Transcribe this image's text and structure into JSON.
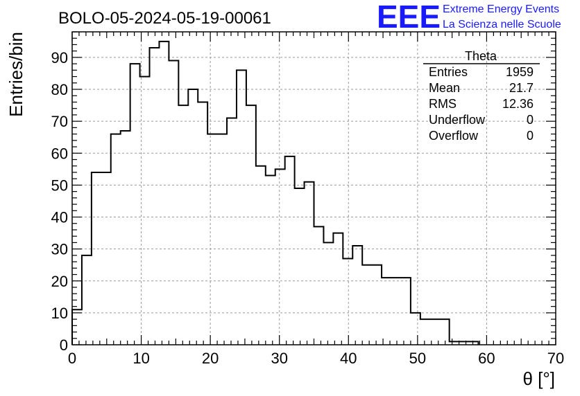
{
  "chart_data": {
    "type": "histogram",
    "title": "BOLO-05-2024-05-19-00061",
    "xlabel": "θ [°]",
    "ylabel": "Entries/bin",
    "xlim": [
      0,
      70
    ],
    "ylim": [
      0,
      98
    ],
    "grid": true,
    "xticks": [
      0,
      10,
      20,
      30,
      40,
      50,
      60,
      70
    ],
    "yticks": [
      0,
      10,
      20,
      30,
      40,
      50,
      60,
      70,
      80,
      90
    ],
    "bin_edges": [
      0.0,
      1.4,
      2.8,
      4.2,
      5.6,
      7.0,
      8.4,
      9.8,
      11.2,
      12.6,
      14.0,
      15.4,
      16.8,
      18.2,
      19.6,
      21.0,
      22.4,
      23.8,
      25.2,
      26.6,
      28.0,
      29.4,
      30.8,
      32.2,
      33.6,
      35.0,
      36.4,
      37.8,
      39.2,
      40.6,
      42.0,
      43.4,
      44.8,
      46.2,
      47.6,
      49.0,
      50.4,
      51.8,
      53.2,
      54.6,
      56.0,
      57.4,
      58.8
    ],
    "series": [
      {
        "values": [
          11,
          28,
          54,
          54,
          66,
          67,
          88,
          84,
          93,
          95,
          89,
          75,
          80,
          76,
          66,
          66,
          71,
          86,
          75,
          56,
          53,
          55,
          59,
          49,
          51,
          37,
          32,
          35,
          27,
          31,
          25,
          25,
          21,
          21,
          21,
          10,
          8,
          8,
          8,
          1,
          1,
          1
        ],
        "color": "#000000"
      }
    ],
    "stats": {
      "name": "Theta",
      "rows": [
        {
          "label": "Entries",
          "value": "1959"
        },
        {
          "label": "Mean",
          "value": "21.7"
        },
        {
          "label": "RMS",
          "value": "12.36"
        },
        {
          "label": "Underflow",
          "value": "0"
        },
        {
          "label": "Overflow",
          "value": "0"
        }
      ]
    }
  },
  "logo": {
    "big": "EEE",
    "line1": "Extreme Energy Events",
    "line2": "La Scienza nelle Scuole",
    "color": "#1a1aff"
  }
}
